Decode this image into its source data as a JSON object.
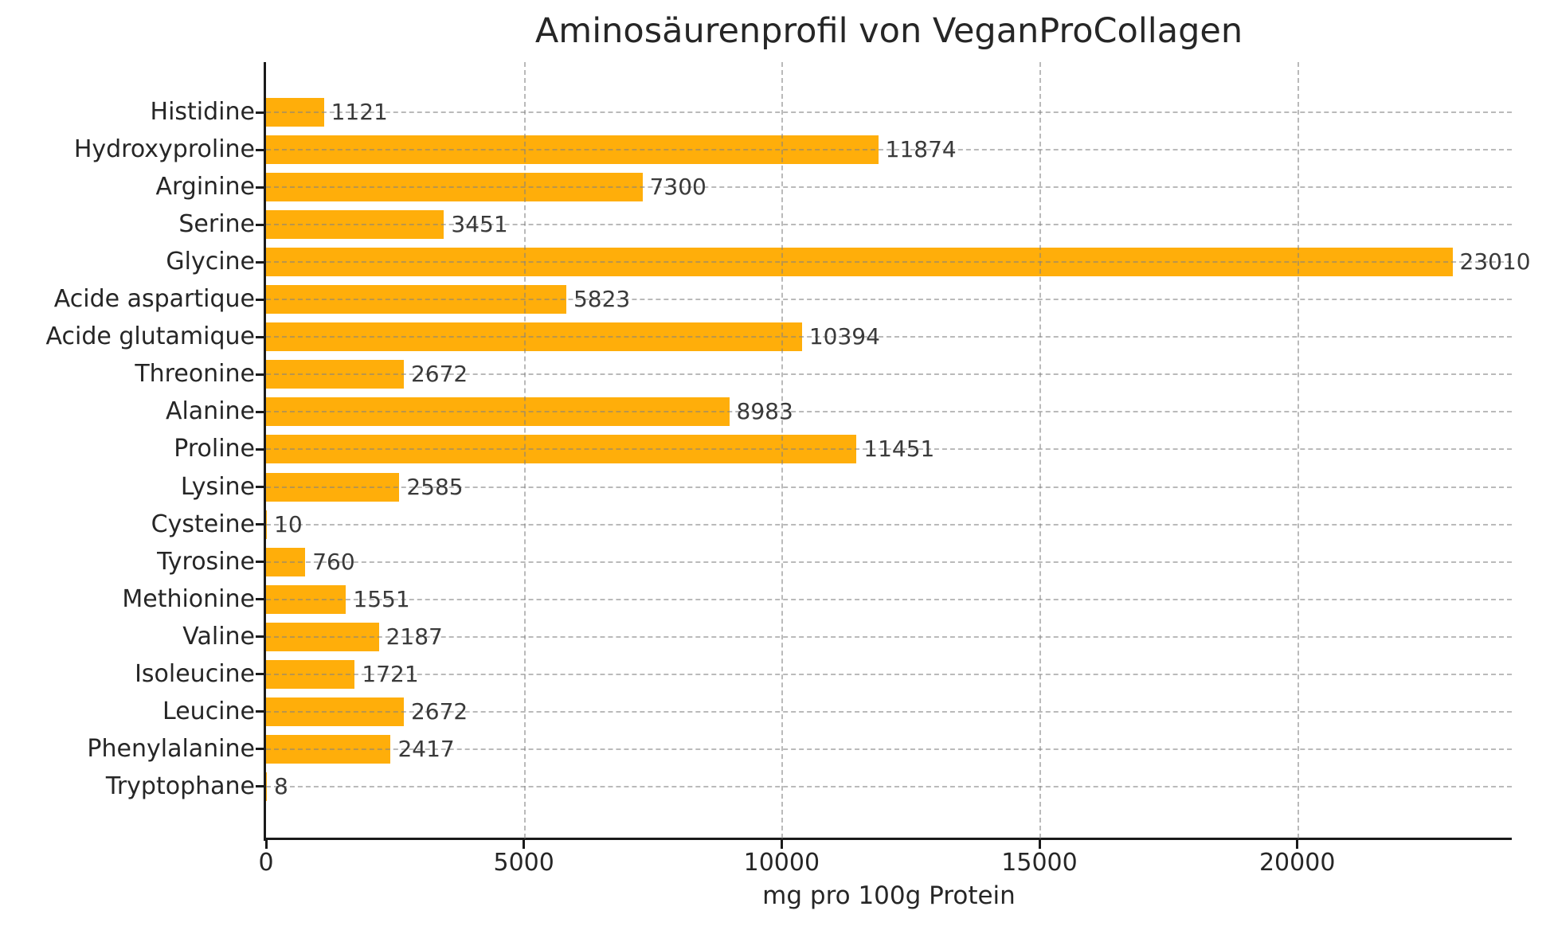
{
  "title": "Aminosäurenprofil von VeganProCollagen",
  "chart_data": {
    "type": "bar",
    "orientation": "horizontal",
    "title": "Aminosäurenprofil von VeganProCollagen",
    "xlabel": "mg pro 100g Protein",
    "ylabel": "",
    "xlim": [
      0,
      24160
    ],
    "xticks": [
      0,
      5000,
      10000,
      15000,
      20000
    ],
    "grid": {
      "horizontal": true,
      "vertical": true,
      "style": "dashed"
    },
    "legend": null,
    "categories": [
      "Histidine",
      "Hydroxyproline",
      "Arginine",
      "Serine",
      "Glycine",
      "Acide aspartique",
      "Acide glutamique",
      "Threonine",
      "Alanine",
      "Proline",
      "Lysine",
      "Cysteine",
      "Tyrosine",
      "Methionine",
      "Valine",
      "Isoleucine",
      "Leucine",
      "Phenylalanine",
      "Tryptophane"
    ],
    "values": [
      1121,
      11874,
      7300,
      3451,
      23010,
      5823,
      10394,
      2672,
      8983,
      11451,
      2585,
      10,
      760,
      1551,
      2187,
      1721,
      2672,
      2417,
      8
    ],
    "value_labels_shown": true
  },
  "colors": {
    "bar": "#ffae0a",
    "grid": "#b0b0b0",
    "axis": "#1a1a1a",
    "title_text": "#262626",
    "tick_text": "#262626",
    "value_text": "#3a3a3a",
    "background": "#ffffff"
  }
}
